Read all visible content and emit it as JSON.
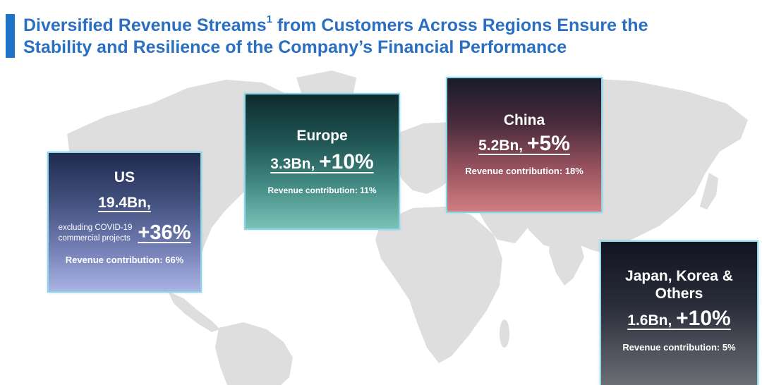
{
  "title": {
    "line1_prefix": "Diversified Revenue Streams",
    "superscript": "1",
    "line1_suffix": " from Customers Across Regions Ensure the",
    "line2": "Stability and Resilience of the Company’s Financial Performance"
  },
  "regions": {
    "us": {
      "name": "US",
      "revenue": "19.4Bn,",
      "note_line1": "excluding COVID-19",
      "note_line2": "commercial projects",
      "growth": "+36%",
      "contribution": "Revenue contribution: 66%"
    },
    "europe": {
      "name": "Europe",
      "revenue": "3.3Bn, ",
      "growth": "+10%",
      "contribution": "Revenue contribution: 11%"
    },
    "china": {
      "name": "China",
      "revenue": "5.2Bn, ",
      "growth": "+5%",
      "contribution": "Revenue contribution: 18%"
    },
    "japan": {
      "name_line1": "Japan, Korea &",
      "name_line2": "Others",
      "revenue": "1.6Bn, ",
      "growth": "+10%",
      "contribution": "Revenue contribution: 5%"
    }
  },
  "colors": {
    "title": "#2a6fc0",
    "accent_bar": "#1f73c6",
    "map": "#dedede",
    "box_border": "#8fd6e6"
  }
}
